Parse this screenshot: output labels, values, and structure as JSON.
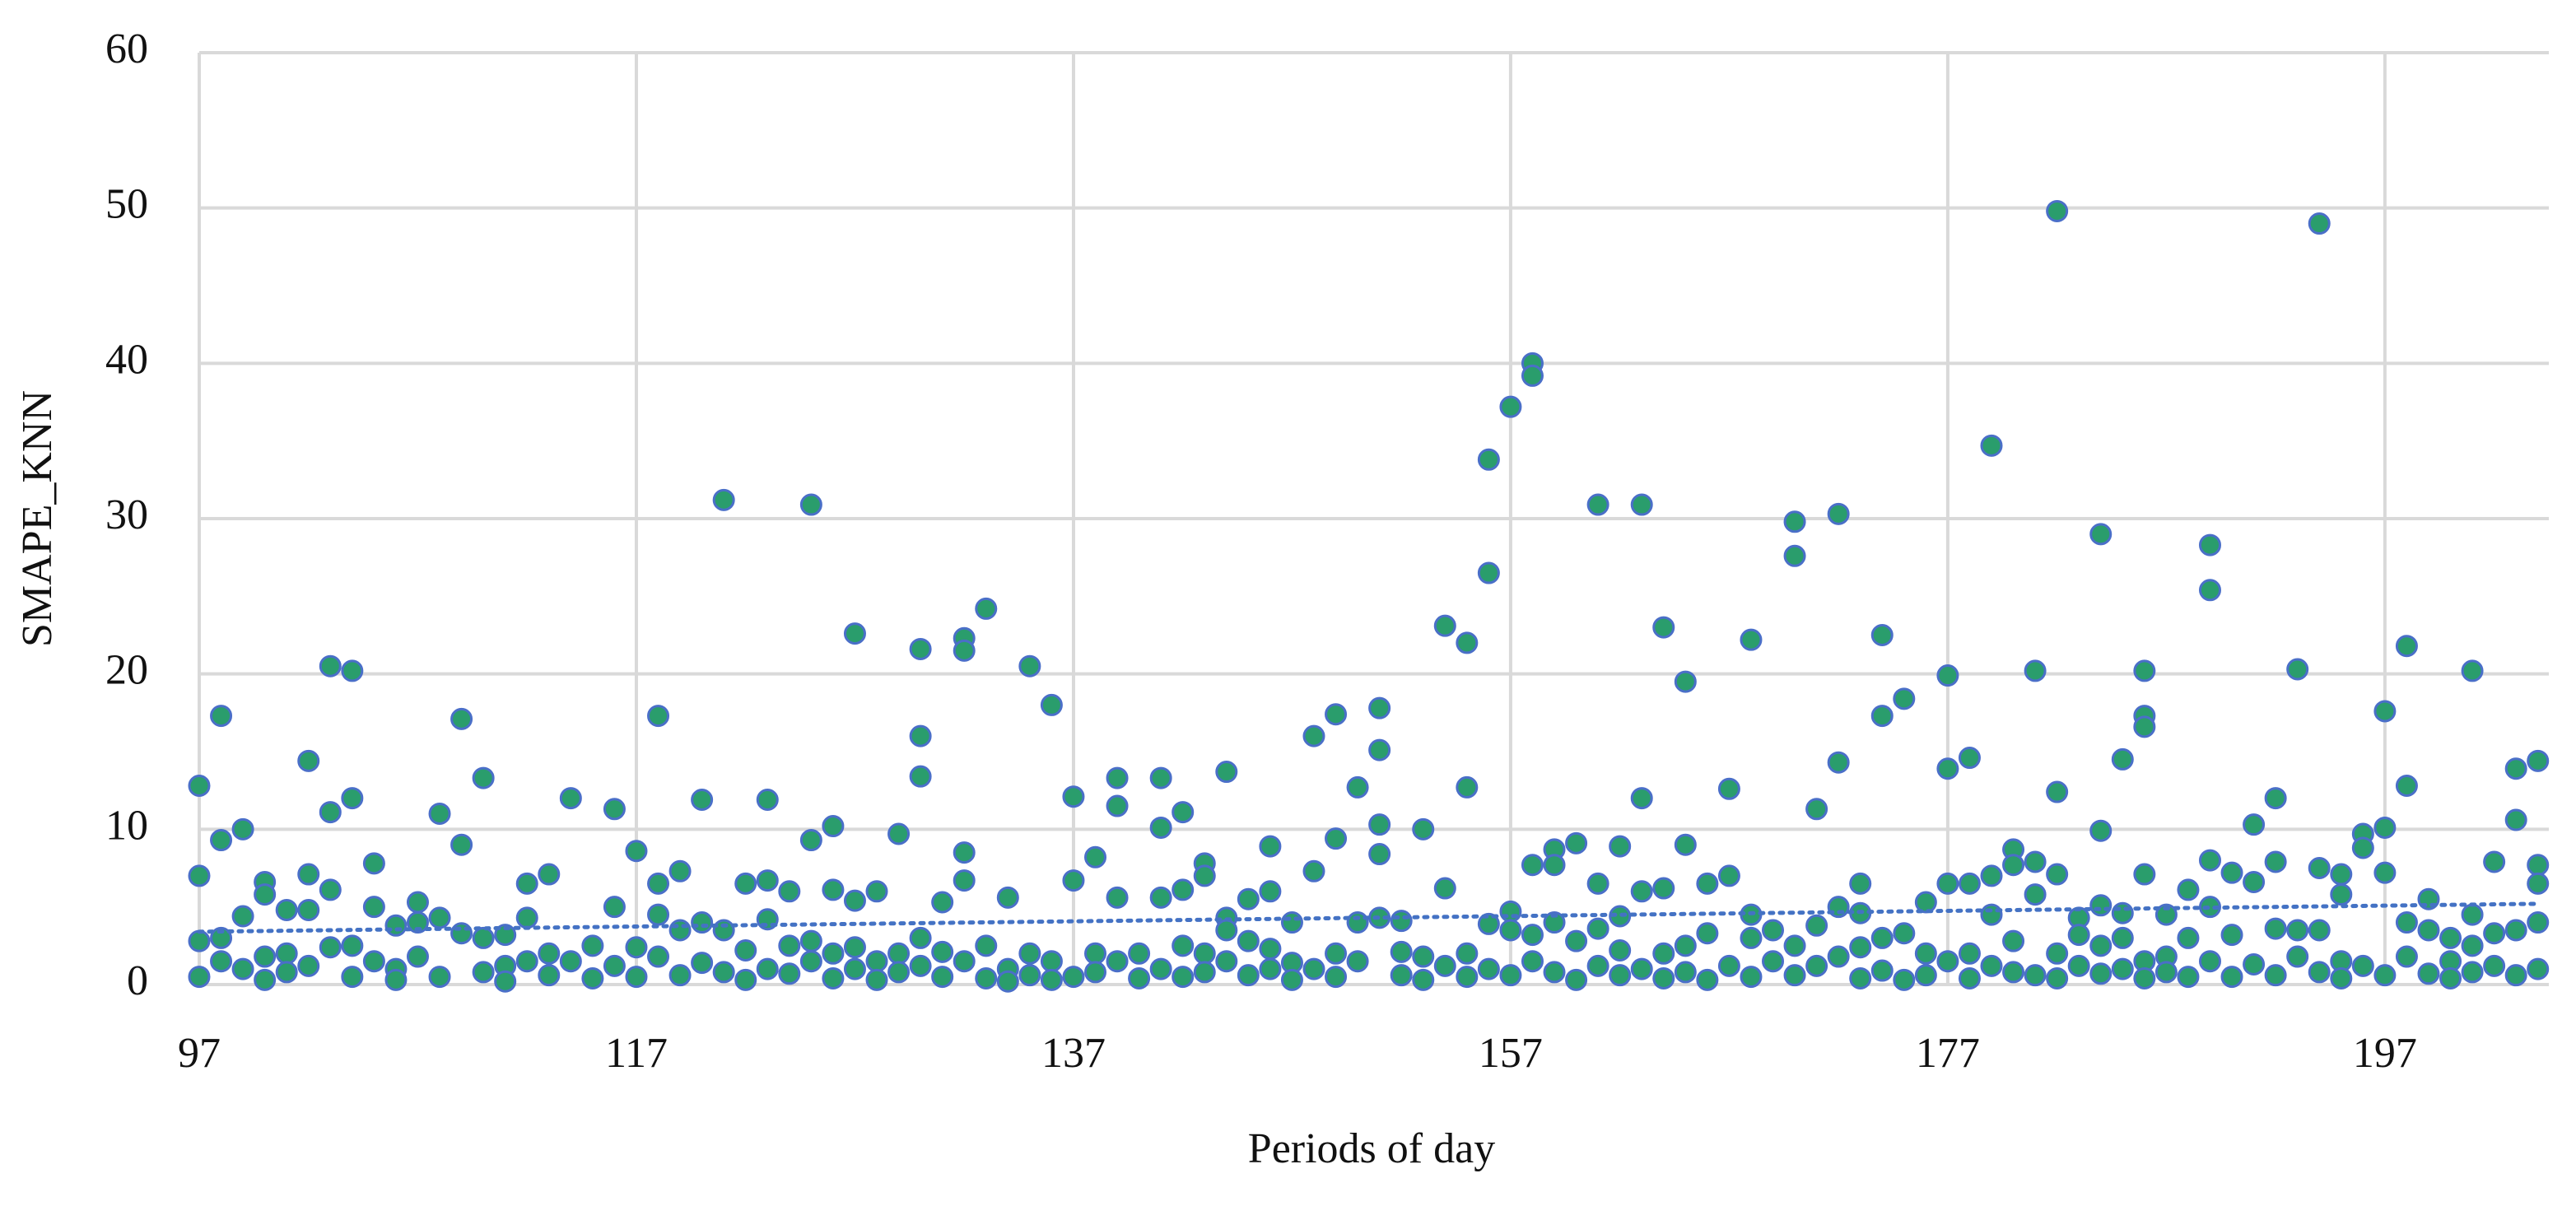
{
  "chart_data": {
    "type": "scatter",
    "x_label": "Periods of day",
    "y_label": "SMAPE_KNN",
    "xlim": [
      97,
      204.5
    ],
    "ylim": [
      0,
      60
    ],
    "xticks": [
      97,
      117,
      137,
      157,
      177,
      197
    ],
    "yticks": [
      0,
      10,
      20,
      30,
      40,
      50,
      60
    ],
    "grid": true,
    "color": "#2a9d6c",
    "edgecolor": "#4a6fc8",
    "trendline": {
      "x": [
        97,
        204
      ],
      "values": [
        3.4,
        5.2
      ],
      "color": "#4472c4",
      "style": "dotted"
    },
    "x": [
      97,
      97,
      97,
      97,
      98,
      98,
      98,
      98,
      99,
      99,
      99,
      100,
      100,
      100,
      100,
      101,
      101,
      101,
      102,
      102,
      102,
      102,
      103,
      103,
      103,
      103,
      104,
      104,
      104,
      104,
      105,
      105,
      105,
      106,
      106,
      106,
      107,
      107,
      107,
      108,
      108,
      108,
      109,
      109,
      109,
      110,
      110,
      110,
      111,
      111,
      111,
      112,
      112,
      112,
      113,
      113,
      113,
      114,
      114,
      115,
      115,
      116,
      116,
      116,
      117,
      117,
      117,
      118,
      118,
      118,
      118,
      119,
      119,
      119,
      120,
      120,
      120,
      121,
      121,
      121,
      122,
      122,
      122,
      123,
      123,
      123,
      123,
      124,
      124,
      124,
      125,
      125,
      125,
      125,
      126,
      126,
      126,
      126,
      127,
      127,
      127,
      127,
      128,
      128,
      128,
      129,
      129,
      129,
      130,
      130,
      130,
      130,
      130,
      131,
      131,
      131,
      132,
      132,
      132,
      132,
      132,
      133,
      133,
      133,
      134,
      134,
      134,
      135,
      135,
      135,
      136,
      136,
      136,
      137,
      137,
      137,
      138,
      138,
      138,
      139,
      139,
      139,
      139,
      140,
      140,
      141,
      141,
      141,
      141,
      142,
      142,
      142,
      142,
      143,
      143,
      143,
      143,
      144,
      144,
      144,
      144,
      145,
      145,
      145,
      146,
      146,
      146,
      146,
      147,
      147,
      147,
      148,
      148,
      148,
      149,
      149,
      149,
      149,
      150,
      150,
      150,
      151,
      151,
      151,
      151,
      151,
      152,
      152,
      152,
      153,
      153,
      153,
      154,
      154,
      154,
      155,
      155,
      155,
      155,
      156,
      156,
      156,
      156,
      157,
      157,
      157,
      157,
      158,
      158,
      158,
      158,
      158,
      159,
      159,
      159,
      159,
      160,
      160,
      160,
      161,
      161,
      161,
      161,
      162,
      162,
      162,
      162,
      163,
      163,
      163,
      163,
      164,
      164,
      164,
      164,
      165,
      165,
      165,
      165,
      166,
      166,
      166,
      167,
      167,
      167,
      168,
      168,
      168,
      168,
      169,
      169,
      170,
      170,
      170,
      170,
      171,
      171,
      171,
      172,
      172,
      172,
      172,
      173,
      173,
      173,
      173,
      174,
      174,
      174,
      174,
      175,
      175,
      175,
      176,
      176,
      176,
      177,
      177,
      177,
      177,
      178,
      178,
      178,
      178,
      179,
      179,
      179,
      179,
      180,
      180,
      180,
      180,
      181,
      181,
      181,
      181,
      182,
      182,
      182,
      182,
      182,
      183,
      183,
      183,
      184,
      184,
      184,
      184,
      184,
      185,
      185,
      185,
      185,
      186,
      186,
      186,
      186,
      186,
      186,
      187,
      187,
      187,
      188,
      188,
      188,
      189,
      189,
      189,
      189,
      189,
      190,
      190,
      190,
      191,
      191,
      191,
      192,
      192,
      192,
      192,
      193,
      193,
      193,
      194,
      194,
      194,
      194,
      195,
      195,
      195,
      195,
      196,
      196,
      196,
      197,
      197,
      197,
      197,
      198,
      198,
      198,
      198,
      199,
      199,
      199,
      200,
      200,
      200,
      201,
      201,
      201,
      201,
      202,
      202,
      202,
      203,
      203,
      203,
      203,
      204,
      204,
      204,
      204,
      204
    ],
    "values": [
      12.8,
      7,
      2.8,
      0.5,
      17.3,
      9.3,
      3,
      1.5,
      10,
      4.4,
      1,
      6.6,
      5.8,
      1.8,
      0.3,
      4.8,
      2,
      0.8,
      14.4,
      7.1,
      4.8,
      1.2,
      20.5,
      11.1,
      6.1,
      2.4,
      20.2,
      12,
      2.5,
      0.5,
      7.8,
      5,
      1.5,
      3.8,
      1,
      0.3,
      5.3,
      4,
      1.8,
      11,
      4.3,
      0.5,
      17.1,
      9,
      3.3,
      13.3,
      3,
      0.8,
      3.2,
      1.2,
      0.2,
      6.5,
      4.3,
      1.5,
      7.1,
      2,
      0.6,
      12,
      1.5,
      2.5,
      0.4,
      11.3,
      5,
      1.2,
      8.6,
      2.4,
      0.5,
      17.3,
      6.5,
      4.5,
      1.8,
      7.3,
      3.5,
      0.6,
      11.9,
      4,
      1.4,
      31.2,
      3.5,
      0.8,
      6.5,
      2.2,
      0.3,
      11.9,
      6.7,
      4.2,
      1,
      6,
      2.5,
      0.7,
      30.9,
      9.3,
      2.8,
      1.5,
      10.2,
      6.1,
      2,
      0.4,
      22.6,
      5.4,
      2.4,
      1,
      6,
      1.5,
      0.3,
      9.7,
      2,
      0.8,
      21.6,
      16,
      13.4,
      3,
      1.2,
      5.3,
      2.1,
      0.5,
      22.3,
      21.5,
      8.5,
      6.7,
      1.5,
      24.2,
      2.5,
      0.4,
      5.6,
      1,
      0.2,
      20.5,
      2,
      0.6,
      18,
      1.5,
      0.3,
      12.1,
      6.7,
      0.5,
      8.2,
      2,
      0.8,
      13.3,
      11.5,
      5.6,
      1.5,
      2,
      0.4,
      13.3,
      10.1,
      5.6,
      1,
      11.1,
      6.1,
      2.5,
      0.5,
      7.8,
      7,
      2,
      0.8,
      13.7,
      4.3,
      3.5,
      1.5,
      5.5,
      2.8,
      0.6,
      8.9,
      6,
      2.3,
      1,
      4,
      1.4,
      0.3,
      16,
      7.3,
      1,
      17.4,
      9.4,
      2,
      0.5,
      12.7,
      4,
      1.5,
      17.8,
      15.1,
      10.3,
      8.4,
      4.3,
      4.1,
      2.1,
      0.6,
      10,
      1.8,
      0.3,
      23.1,
      6.2,
      1.2,
      22,
      12.7,
      2,
      0.5,
      33.8,
      26.5,
      3.9,
      1,
      37.2,
      4.7,
      3.5,
      0.6,
      40,
      39.2,
      7.7,
      3.2,
      1.5,
      8.7,
      7.7,
      4,
      0.8,
      9.1,
      2.8,
      0.3,
      30.9,
      6.5,
      3.6,
      1.2,
      8.9,
      4.4,
      2.2,
      0.6,
      30.9,
      12,
      6,
      1,
      23,
      6.2,
      2,
      0.4,
      19.5,
      9,
      2.5,
      0.8,
      6.5,
      3.3,
      0.3,
      12.6,
      7,
      1.2,
      22.2,
      4.5,
      3,
      0.5,
      3.5,
      1.5,
      29.8,
      27.6,
      2.5,
      0.6,
      11.3,
      3.8,
      1.2,
      30.3,
      14.3,
      5,
      1.8,
      6.5,
      4.6,
      2.4,
      0.4,
      22.5,
      17.3,
      3,
      0.9,
      18.4,
      3.3,
      0.3,
      5.3,
      2,
      0.6,
      19.9,
      13.9,
      6.5,
      1.5,
      14.6,
      6.5,
      2,
      0.4,
      34.7,
      7,
      4.5,
      1.2,
      8.7,
      7.7,
      2.8,
      0.8,
      20.2,
      7.9,
      5.8,
      0.6,
      49.8,
      12.4,
      7.1,
      2,
      0.4,
      4.3,
      3.2,
      1.2,
      29,
      9.9,
      5.1,
      2.5,
      0.7,
      14.5,
      4.6,
      3,
      1,
      20.2,
      17.3,
      16.6,
      7.1,
      1.5,
      0.4,
      4.5,
      1.8,
      0.8,
      6.1,
      3,
      0.5,
      28.3,
      25.4,
      8,
      5,
      1.5,
      7.2,
      3.2,
      0.5,
      10.3,
      6.6,
      1.3,
      12,
      7.9,
      3.6,
      0.6,
      20.3,
      3.5,
      1.8,
      49,
      7.5,
      3.5,
      0.8,
      7.1,
      5.8,
      1.5,
      0.4,
      9.7,
      8.8,
      1.2,
      17.6,
      10.1,
      7.2,
      0.6,
      21.8,
      12.8,
      4,
      1.8,
      5.5,
      3.5,
      0.7,
      3,
      1.5,
      0.4,
      20.2,
      4.5,
      2.5,
      0.8,
      7.9,
      3.3,
      1.2,
      13.9,
      10.6,
      3.5,
      0.6,
      14.4,
      7.7,
      6.5,
      4,
      1
    ]
  }
}
